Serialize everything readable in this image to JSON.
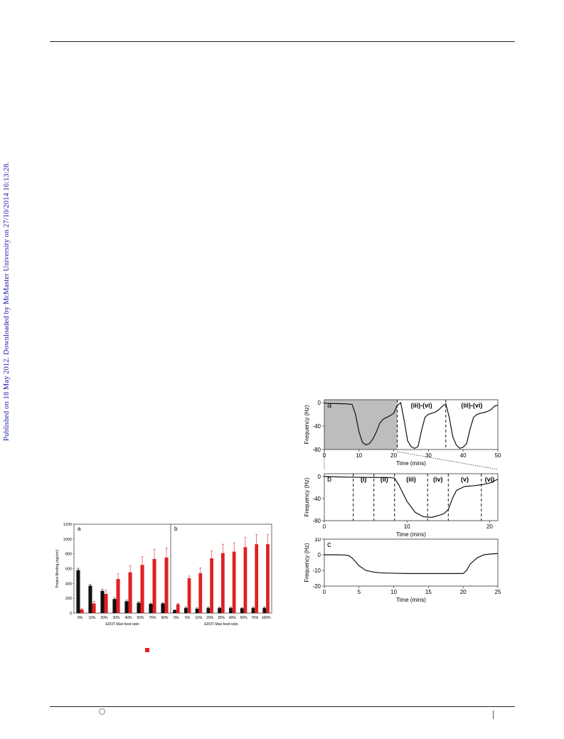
{
  "sidebar": {
    "text": "Published on 18 May 2012. Downloaded by McMaster University on 27/10/2014 16:13:28."
  },
  "colors": {
    "bar_black": "#111111",
    "bar_red": "#e02020",
    "shade": "#bdbdbd",
    "link_blue": "#1a1aa6"
  },
  "chart_data": [
    {
      "type": "bar",
      "panel_label": "a",
      "categories": [
        "0%",
        "10%",
        "20%",
        "30%",
        "40%",
        "50%",
        "75%",
        "90%"
      ],
      "series": [
        {
          "values": [
            580,
            370,
            300,
            190,
            160,
            140,
            125,
            130
          ]
        },
        {
          "values": [
            50,
            130,
            260,
            460,
            550,
            650,
            730,
            750
          ]
        }
      ],
      "errors": [
        [
          25,
          20,
          20,
          15,
          15,
          15,
          10,
          10
        ],
        [
          10,
          30,
          50,
          70,
          90,
          110,
          130,
          130
        ]
      ],
      "ylabel": "Protein Binding (ng/cm²)",
      "xlabel": "EDOT-Man feed ratio",
      "ylim": [
        0,
        1200
      ],
      "yticks": [
        "0",
        "200",
        "400",
        "600",
        "800",
        "1000",
        "1200"
      ]
    },
    {
      "type": "bar",
      "panel_label": "b",
      "categories": [
        "0%",
        "5%",
        "10%",
        "20%",
        "30%",
        "40%",
        "50%",
        "75%",
        "100%"
      ],
      "series": [
        {
          "values": [
            40,
            70,
            60,
            70,
            70,
            70,
            65,
            70,
            70
          ]
        },
        {
          "values": [
            120,
            470,
            540,
            740,
            810,
            830,
            890,
            930,
            930
          ]
        }
      ],
      "errors": [
        [
          5,
          10,
          10,
          10,
          10,
          10,
          10,
          10,
          10
        ],
        [
          10,
          30,
          70,
          100,
          120,
          120,
          130,
          130,
          130
        ]
      ],
      "xlabel": "EDOT-Man feed ratio"
    },
    {
      "type": "line",
      "panel_label": "a",
      "xlabel": "Time (mins)",
      "ylabel": "Frequency (Hz)",
      "xlim": [
        0,
        50
      ],
      "ylim": [
        -80,
        5
      ],
      "xticks": [
        "0",
        "10",
        "20",
        "30",
        "40",
        "50"
      ],
      "yticks": [
        "0",
        "-40",
        "-80"
      ],
      "shaded_region": [
        0,
        21
      ],
      "dashed_lines": [
        21,
        35
      ],
      "annotations": [
        "(iii)-(vi)",
        "(iii)-(vi)"
      ],
      "x": [
        0,
        3,
        6,
        8,
        9,
        10,
        11,
        12,
        13,
        14,
        15,
        16,
        17,
        18,
        19,
        20,
        21,
        22,
        23,
        24,
        25,
        26,
        27,
        28,
        29,
        30,
        31,
        32,
        33,
        34,
        35,
        36,
        37,
        38,
        39,
        40,
        41,
        42,
        43,
        44,
        45,
        46,
        47,
        48,
        49,
        50
      ],
      "y": [
        -1,
        -1.5,
        -2,
        -3,
        -20,
        -50,
        -68,
        -72,
        -70,
        -62,
        -50,
        -35,
        -28,
        -25,
        -22,
        -18,
        -5,
        0,
        -30,
        -65,
        -75,
        -78,
        -75,
        -48,
        -25,
        -20,
        -18,
        -16,
        -12,
        -6,
        -2,
        -25,
        -58,
        -72,
        -78,
        -76,
        -70,
        -45,
        -25,
        -20,
        -18,
        -17,
        -15,
        -12,
        -6,
        -4
      ]
    },
    {
      "type": "line",
      "panel_label": "b",
      "xlabel": "Time (mins)",
      "ylabel": "Frequency (Hz)",
      "xlim": [
        0,
        21
      ],
      "ylim": [
        -80,
        5
      ],
      "xticks": [
        "0",
        "10",
        "20"
      ],
      "yticks": [
        "0",
        "-40",
        "-80"
      ],
      "dashed_lines": [
        3.5,
        6,
        8.5,
        12.5,
        15,
        19
      ],
      "annotations": [
        "(i)",
        "(ii)",
        "(iii)",
        "(iv)",
        "(v)",
        "(vi)"
      ],
      "x": [
        0,
        1,
        2,
        3,
        4,
        5,
        6,
        7,
        8,
        8.5,
        9,
        10,
        11,
        12,
        13,
        14,
        14.5,
        15,
        15.5,
        16,
        17,
        18,
        19,
        20,
        21
      ],
      "y": [
        0,
        -0.5,
        -1,
        -1.2,
        -1.5,
        -1.7,
        -1.8,
        -2,
        -2,
        -3,
        -15,
        -45,
        -65,
        -73,
        -74,
        -70,
        -67,
        -60,
        -40,
        -25,
        -18,
        -17,
        -15,
        -12,
        -5
      ]
    },
    {
      "type": "line",
      "panel_label": "c",
      "xlabel": "Time (mins)",
      "ylabel": "Frequency (Hz)",
      "xlim": [
        0,
        25
      ],
      "ylim": [
        -20,
        10
      ],
      "xticks": [
        "0",
        "5",
        "10",
        "15",
        "20",
        "25"
      ],
      "yticks": [
        "10",
        "0",
        "-10",
        "-20"
      ],
      "x": [
        0,
        2,
        3,
        3.5,
        4,
        5,
        6,
        7,
        8,
        10,
        12,
        15,
        18,
        20,
        20.5,
        21,
        22,
        23,
        24,
        25
      ],
      "y": [
        0,
        0,
        -0.2,
        -0.5,
        -2,
        -7,
        -10,
        -11,
        -11.5,
        -11.8,
        -12,
        -12,
        -12,
        -12,
        -10,
        -6,
        -2,
        0,
        0.5,
        0.8
      ]
    }
  ]
}
